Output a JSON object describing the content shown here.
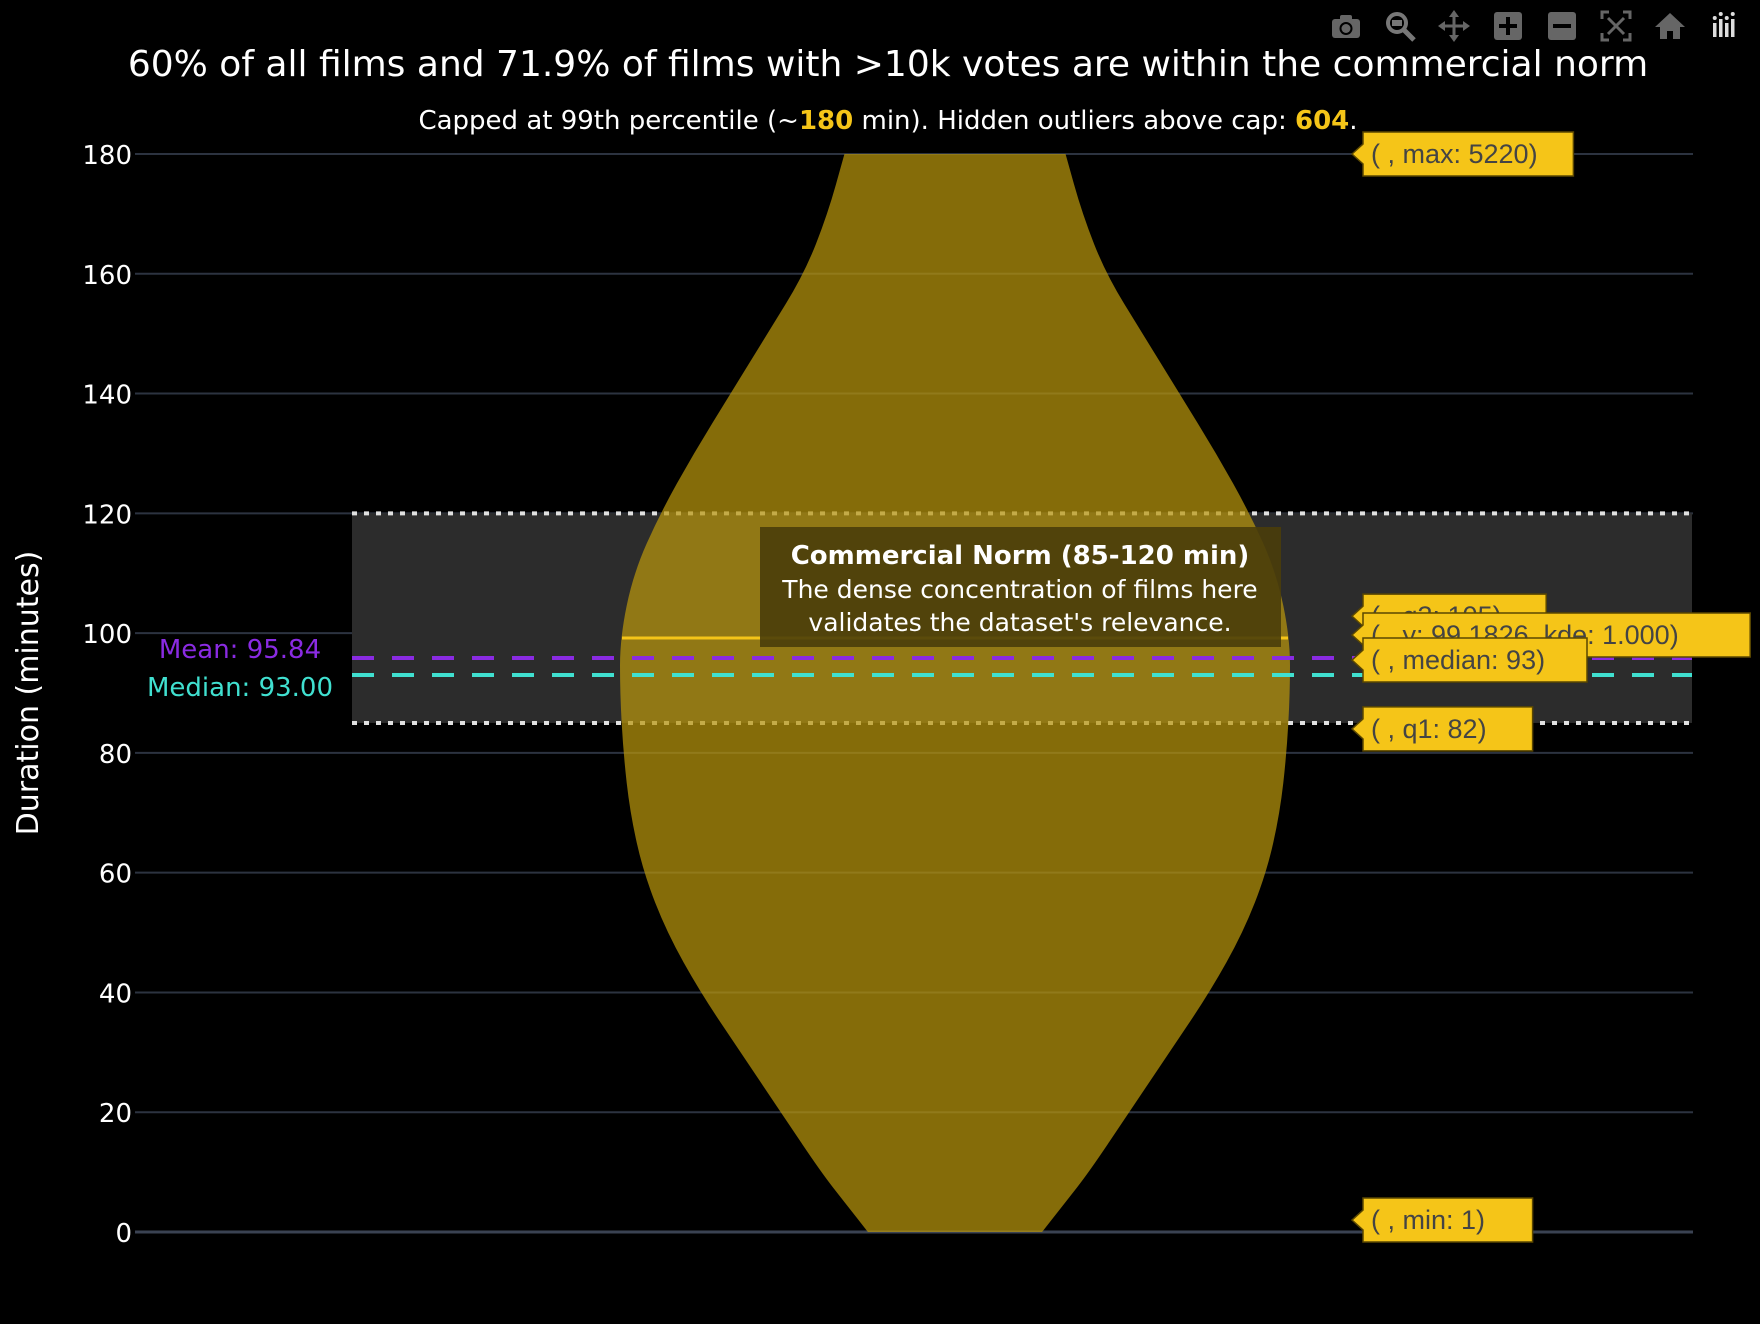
{
  "chart_data": {
    "type": "violin",
    "title": "60% of all films and 71.9% of films with >10k votes are within the commercial norm",
    "subtitle": {
      "parts": [
        {
          "text": "Capped at 99th percentile (~",
          "highlight": false
        },
        {
          "text": "180",
          "highlight": true
        },
        {
          "text": " min). Hidden outliers above cap: ",
          "highlight": false
        },
        {
          "text": "604",
          "highlight": true
        },
        {
          "text": ".",
          "highlight": false
        }
      ]
    },
    "ylabel": "Duration (minutes)",
    "xlabel": "",
    "ylim": [
      0,
      180
    ],
    "yticks": [
      0,
      20,
      40,
      60,
      80,
      100,
      120,
      140,
      160,
      180
    ],
    "grid": true,
    "violin": {
      "color": "#b8960c",
      "kde_profile": [
        {
          "y": 0,
          "kde": 0.26
        },
        {
          "y": 5,
          "kde": 0.33
        },
        {
          "y": 10,
          "kde": 0.4
        },
        {
          "y": 20,
          "kde": 0.52
        },
        {
          "y": 30,
          "kde": 0.64
        },
        {
          "y": 40,
          "kde": 0.76
        },
        {
          "y": 50,
          "kde": 0.86
        },
        {
          "y": 60,
          "kde": 0.93
        },
        {
          "y": 70,
          "kde": 0.97
        },
        {
          "y": 80,
          "kde": 0.99
        },
        {
          "y": 90,
          "kde": 1.0
        },
        {
          "y": 99.18,
          "kde": 1.0
        },
        {
          "y": 110,
          "kde": 0.96
        },
        {
          "y": 120,
          "kde": 0.88
        },
        {
          "y": 130,
          "kde": 0.78
        },
        {
          "y": 140,
          "kde": 0.67
        },
        {
          "y": 150,
          "kde": 0.56
        },
        {
          "y": 160,
          "kde": 0.45
        },
        {
          "y": 170,
          "kde": 0.38
        },
        {
          "y": 180,
          "kde": 0.33
        }
      ],
      "peak": {
        "y": 99.1826,
        "kde": 1.0
      }
    },
    "norm_band": {
      "from": 85,
      "to": 120,
      "title": "Commercial Norm (85-120 min)",
      "line1": "The dense concentration of films here",
      "line2": "validates the dataset's relevance."
    },
    "mean_line": {
      "value": 95.84,
      "label": "Mean: 95.84",
      "color": "#8a2be2"
    },
    "median_line": {
      "value": 93.0,
      "label": "Median: 93.00",
      "color": "#40e0d0"
    },
    "highlight_color": "#f5c518",
    "hover_labels": [
      {
        "y": 180,
        "text": "( , max: 5220)"
      },
      {
        "y": 105,
        "text": "( , q3: 105)"
      },
      {
        "y": 99.1826,
        "text": "( , y: 99.1826, kde: 1.000)"
      },
      {
        "y": 93,
        "text": "( , median: 93)"
      },
      {
        "y": 82,
        "text": "( , q1: 82)"
      },
      {
        "y": 1,
        "text": "( , min: 1)"
      }
    ]
  },
  "modebar": {
    "buttons": [
      "camera-icon",
      "zoom-icon",
      "pan-icon",
      "zoom-in-icon",
      "zoom-out-icon",
      "autoscale-icon",
      "home-icon",
      "plotly-logo-icon"
    ]
  }
}
